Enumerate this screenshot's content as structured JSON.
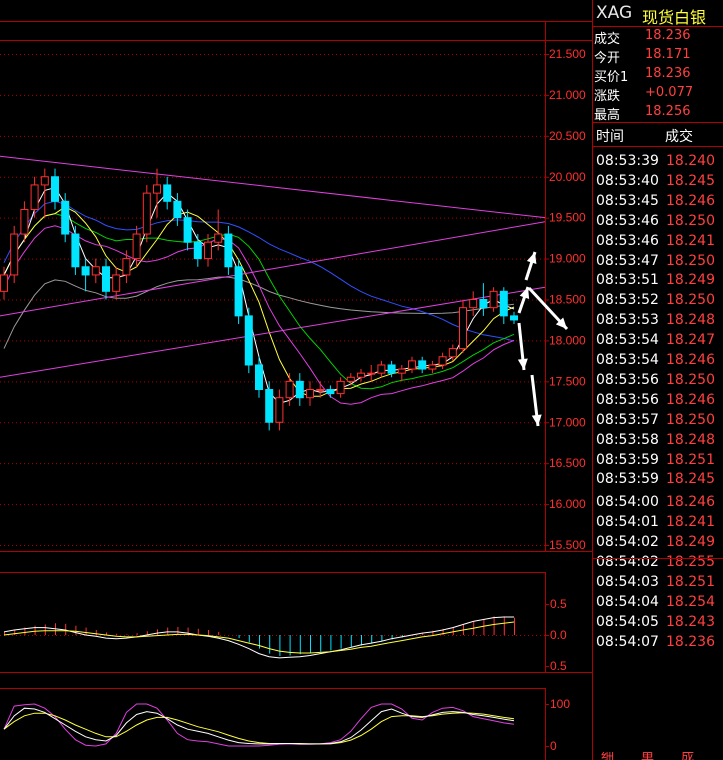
{
  "colors": {
    "up": "#ff3030",
    "down": "#00e4ff",
    "grid": "#b00000",
    "axis_text": "#ff3030",
    "price": "#ff4040",
    "name": "#ffff3c",
    "ma5": "#ffffff",
    "ma10": "#ffff3c",
    "ma20": "#00d400",
    "ma60": "#3050ff",
    "ma120": "#9a9a9a",
    "trend": "#e040e0",
    "arrow": "#ffffff"
  },
  "header": {
    "symbol": "XAG",
    "name": "现货白银"
  },
  "quote": [
    {
      "label": "成交",
      "value": "18.236"
    },
    {
      "label": "今开",
      "value": "18.171"
    },
    {
      "label": "买价1",
      "value": "18.236"
    },
    {
      "label": "涨跌",
      "value": "+0.077"
    },
    {
      "label": "最高",
      "value": "18.256"
    }
  ],
  "ticks_header": {
    "time": "时间",
    "price": "成交"
  },
  "ticks": [
    {
      "time": "08:53:39",
      "price": "18.240"
    },
    {
      "time": "08:53:40",
      "price": "18.245"
    },
    {
      "time": "08:53:45",
      "price": "18.246"
    },
    {
      "time": "08:53:46",
      "price": "18.250"
    },
    {
      "time": "08:53:46",
      "price": "18.241"
    },
    {
      "time": "08:53:47",
      "price": "18.250"
    },
    {
      "time": "08:53:51",
      "price": "18.249"
    },
    {
      "time": "08:53:52",
      "price": "18.250"
    },
    {
      "time": "08:53:53",
      "price": "18.248"
    },
    {
      "time": "08:53:54",
      "price": "18.247"
    },
    {
      "time": "08:53:54",
      "price": "18.246"
    },
    {
      "time": "08:53:56",
      "price": "18.250"
    },
    {
      "time": "08:53:56",
      "price": "18.246"
    },
    {
      "time": "08:53:57",
      "price": "18.250"
    },
    {
      "time": "08:53:58",
      "price": "18.248"
    },
    {
      "time": "08:53:59",
      "price": "18.251"
    },
    {
      "time": "08:53:59",
      "price": "18.245"
    },
    {
      "time": "08:54:00",
      "price": "18.246"
    },
    {
      "time": "08:54:01",
      "price": "18.241"
    },
    {
      "time": "08:54:02",
      "price": "18.249"
    },
    {
      "time": "08:54:02",
      "price": "18.255"
    },
    {
      "time": "08:54:03",
      "price": "18.251"
    },
    {
      "time": "08:54:04",
      "price": "18.254"
    },
    {
      "time": "08:54:05",
      "price": "18.243"
    },
    {
      "time": "08:54:07",
      "price": "18.236"
    }
  ],
  "footer": [
    "细",
    "单",
    "成"
  ],
  "chart_data": [
    {
      "type": "candlestick",
      "ylim": [
        15.5,
        21.5
      ],
      "y_ticks": [
        "21.500",
        "21.000",
        "20.500",
        "20.000",
        "19.500",
        "19.000",
        "18.500",
        "18.000",
        "17.500",
        "17.000",
        "16.500",
        "16.000",
        "15.500"
      ],
      "candles": [
        [
          18.6,
          18.8,
          18.5,
          18.9
        ],
        [
          18.8,
          19.3,
          18.7,
          19.4
        ],
        [
          19.3,
          19.6,
          19.2,
          19.7
        ],
        [
          19.6,
          19.9,
          19.5,
          20.0
        ],
        [
          19.9,
          20.0,
          19.5,
          20.1
        ],
        [
          20.0,
          19.7,
          19.6,
          20.1
        ],
        [
          19.7,
          19.3,
          19.2,
          19.8
        ],
        [
          19.3,
          18.9,
          18.8,
          19.4
        ],
        [
          18.9,
          18.8,
          18.6,
          19.0
        ],
        [
          18.8,
          18.9,
          18.7,
          19.0
        ],
        [
          18.9,
          18.6,
          18.5,
          19.0
        ],
        [
          18.6,
          18.8,
          18.5,
          18.9
        ],
        [
          18.8,
          19.0,
          18.7,
          19.1
        ],
        [
          19.0,
          19.3,
          18.9,
          19.4
        ],
        [
          19.3,
          19.8,
          19.2,
          19.9
        ],
        [
          19.8,
          19.9,
          19.5,
          20.1
        ],
        [
          19.9,
          19.7,
          19.6,
          20.0
        ],
        [
          19.7,
          19.5,
          19.4,
          19.8
        ],
        [
          19.5,
          19.2,
          19.1,
          19.6
        ],
        [
          19.2,
          19.0,
          18.9,
          19.3
        ],
        [
          19.0,
          19.2,
          18.9,
          19.3
        ],
        [
          19.2,
          19.3,
          19.1,
          19.6
        ],
        [
          19.3,
          18.9,
          18.8,
          19.4
        ],
        [
          18.9,
          18.3,
          18.2,
          19.0
        ],
        [
          18.3,
          17.7,
          17.6,
          18.4
        ],
        [
          17.7,
          17.4,
          17.3,
          17.8
        ],
        [
          17.4,
          17.0,
          16.9,
          17.5
        ],
        [
          17.0,
          17.3,
          16.9,
          17.4
        ],
        [
          17.3,
          17.5,
          17.2,
          17.6
        ],
        [
          17.5,
          17.3,
          17.2,
          17.6
        ],
        [
          17.3,
          17.4,
          17.2,
          17.5
        ],
        [
          17.4,
          17.4,
          17.3,
          17.5
        ],
        [
          17.4,
          17.35,
          17.3,
          17.45
        ],
        [
          17.35,
          17.5,
          17.3,
          17.55
        ],
        [
          17.5,
          17.55,
          17.45,
          17.6
        ],
        [
          17.55,
          17.6,
          17.5,
          17.65
        ],
        [
          17.6,
          17.6,
          17.5,
          17.7
        ],
        [
          17.6,
          17.7,
          17.55,
          17.75
        ],
        [
          17.7,
          17.6,
          17.55,
          17.75
        ],
        [
          17.6,
          17.65,
          17.5,
          17.7
        ],
        [
          17.65,
          17.75,
          17.6,
          17.8
        ],
        [
          17.75,
          17.65,
          17.6,
          17.8
        ],
        [
          17.65,
          17.7,
          17.6,
          17.75
        ],
        [
          17.7,
          17.8,
          17.65,
          17.85
        ],
        [
          17.8,
          17.9,
          17.75,
          17.95
        ],
        [
          17.9,
          18.4,
          17.85,
          18.5
        ],
        [
          18.4,
          18.5,
          18.3,
          18.6
        ],
        [
          18.5,
          18.4,
          18.3,
          18.7
        ],
        [
          18.4,
          18.6,
          18.35,
          18.65
        ],
        [
          18.6,
          18.3,
          18.2,
          18.65
        ],
        [
          18.3,
          18.25,
          18.2,
          18.35
        ]
      ],
      "indicator_lines": [
        "MA5",
        "MA10",
        "MA20",
        "MA60",
        "MA120"
      ],
      "annotations": [
        "trend-channel",
        "direction-arrows"
      ]
    },
    {
      "type": "bar",
      "name": "MACD",
      "ylim": [
        -0.5,
        0.5
      ],
      "y_ticks": [
        "0.5",
        "0.0",
        "0.5"
      ],
      "values": [
        0.05,
        0.08,
        0.12,
        0.15,
        0.17,
        0.19,
        0.18,
        0.15,
        0.12,
        0.08,
        0.04,
        0.02,
        0.01,
        0.03,
        0.06,
        0.09,
        0.12,
        0.13,
        0.12,
        0.1,
        0.08,
        0.05,
        0.0,
        -0.05,
        -0.12,
        -0.22,
        -0.3,
        -0.34,
        -0.33,
        -0.31,
        -0.29,
        -0.27,
        -0.25,
        -0.22,
        -0.19,
        -0.17,
        -0.14,
        -0.1,
        -0.07,
        -0.04,
        0.0,
        0.04,
        0.07,
        0.1,
        0.13,
        0.17,
        0.22,
        0.26,
        0.3,
        0.3,
        0.28
      ],
      "dif": [
        0.05,
        0.08,
        0.1,
        0.12,
        0.12,
        0.1,
        0.08,
        0.04,
        0.0,
        -0.02,
        -0.05,
        -0.06,
        -0.05,
        -0.03,
        0.0,
        0.03,
        0.05,
        0.05,
        0.03,
        0.0,
        -0.02,
        -0.05,
        -0.09,
        -0.15,
        -0.22,
        -0.3,
        -0.35,
        -0.37,
        -0.36,
        -0.35,
        -0.33,
        -0.3,
        -0.27,
        -0.24,
        -0.2,
        -0.16,
        -0.13,
        -0.1,
        -0.06,
        -0.03,
        0.0,
        0.03,
        0.05,
        0.08,
        0.12,
        0.17,
        0.22,
        0.25,
        0.28,
        0.29,
        0.29
      ],
      "dea": [
        0.0,
        0.02,
        0.04,
        0.06,
        0.07,
        0.07,
        0.07,
        0.06,
        0.04,
        0.02,
        0.0,
        -0.02,
        -0.03,
        -0.03,
        -0.02,
        -0.01,
        0.0,
        0.01,
        0.01,
        0.0,
        -0.01,
        -0.03,
        -0.05,
        -0.09,
        -0.13,
        -0.17,
        -0.22,
        -0.26,
        -0.28,
        -0.29,
        -0.29,
        -0.28,
        -0.27,
        -0.25,
        -0.23,
        -0.2,
        -0.18,
        -0.15,
        -0.12,
        -0.09,
        -0.06,
        -0.03,
        -0.01,
        0.02,
        0.05,
        0.08,
        0.11,
        0.14,
        0.17,
        0.19,
        0.21
      ]
    },
    {
      "type": "line",
      "name": "KDJ",
      "ylim": [
        0,
        100
      ],
      "y_ticks": [
        "100",
        "0"
      ],
      "k": [
        40,
        72,
        90,
        88,
        80,
        65,
        50,
        35,
        22,
        15,
        12,
        25,
        55,
        75,
        82,
        78,
        65,
        50,
        40,
        35,
        30,
        22,
        14,
        8,
        6,
        5,
        5,
        6,
        6,
        5,
        5,
        5,
        6,
        10,
        20,
        38,
        60,
        82,
        88,
        78,
        70,
        68,
        74,
        80,
        82,
        80,
        75,
        72,
        68,
        64,
        60
      ],
      "d": [
        40,
        58,
        72,
        78,
        78,
        72,
        62,
        50,
        40,
        30,
        22,
        22,
        35,
        50,
        62,
        68,
        68,
        62,
        54,
        46,
        40,
        34,
        26,
        18,
        12,
        8,
        6,
        6,
        6,
        6,
        5,
        5,
        5,
        8,
        14,
        25,
        40,
        58,
        70,
        72,
        72,
        70,
        72,
        76,
        78,
        79,
        78,
        76,
        72,
        68,
        65
      ],
      "j": [
        40,
        95,
        98,
        100,
        90,
        70,
        40,
        15,
        2,
        0,
        5,
        30,
        80,
        100,
        100,
        90,
        62,
        30,
        15,
        12,
        10,
        5,
        0,
        0,
        0,
        0,
        2,
        4,
        5,
        4,
        4,
        5,
        8,
        15,
        35,
        65,
        92,
        100,
        100,
        88,
        66,
        62,
        80,
        90,
        92,
        84,
        70,
        65,
        60,
        55,
        52
      ]
    }
  ]
}
